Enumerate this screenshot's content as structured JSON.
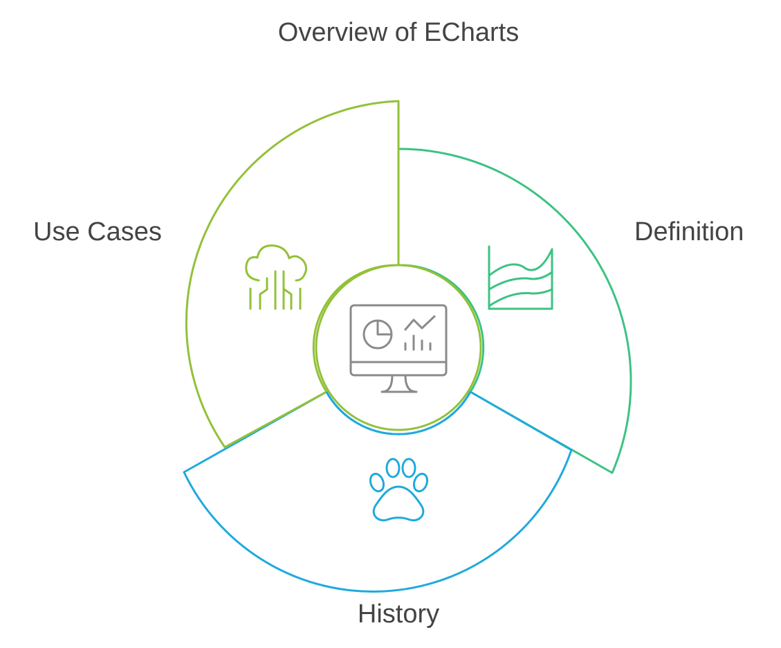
{
  "title": "Overview of ECharts",
  "segments": [
    {
      "label": "Definition",
      "color": "#3cc283",
      "icon": "area-chart-icon"
    },
    {
      "label": "History",
      "color": "#1fa9de",
      "icon": "paw-icon"
    },
    {
      "label": "Use Cases",
      "color": "#92c138",
      "icon": "cloud-circuit-icon"
    }
  ],
  "center": {
    "icon": "monitor-dashboard-icon",
    "color": "#8a8a8a"
  }
}
